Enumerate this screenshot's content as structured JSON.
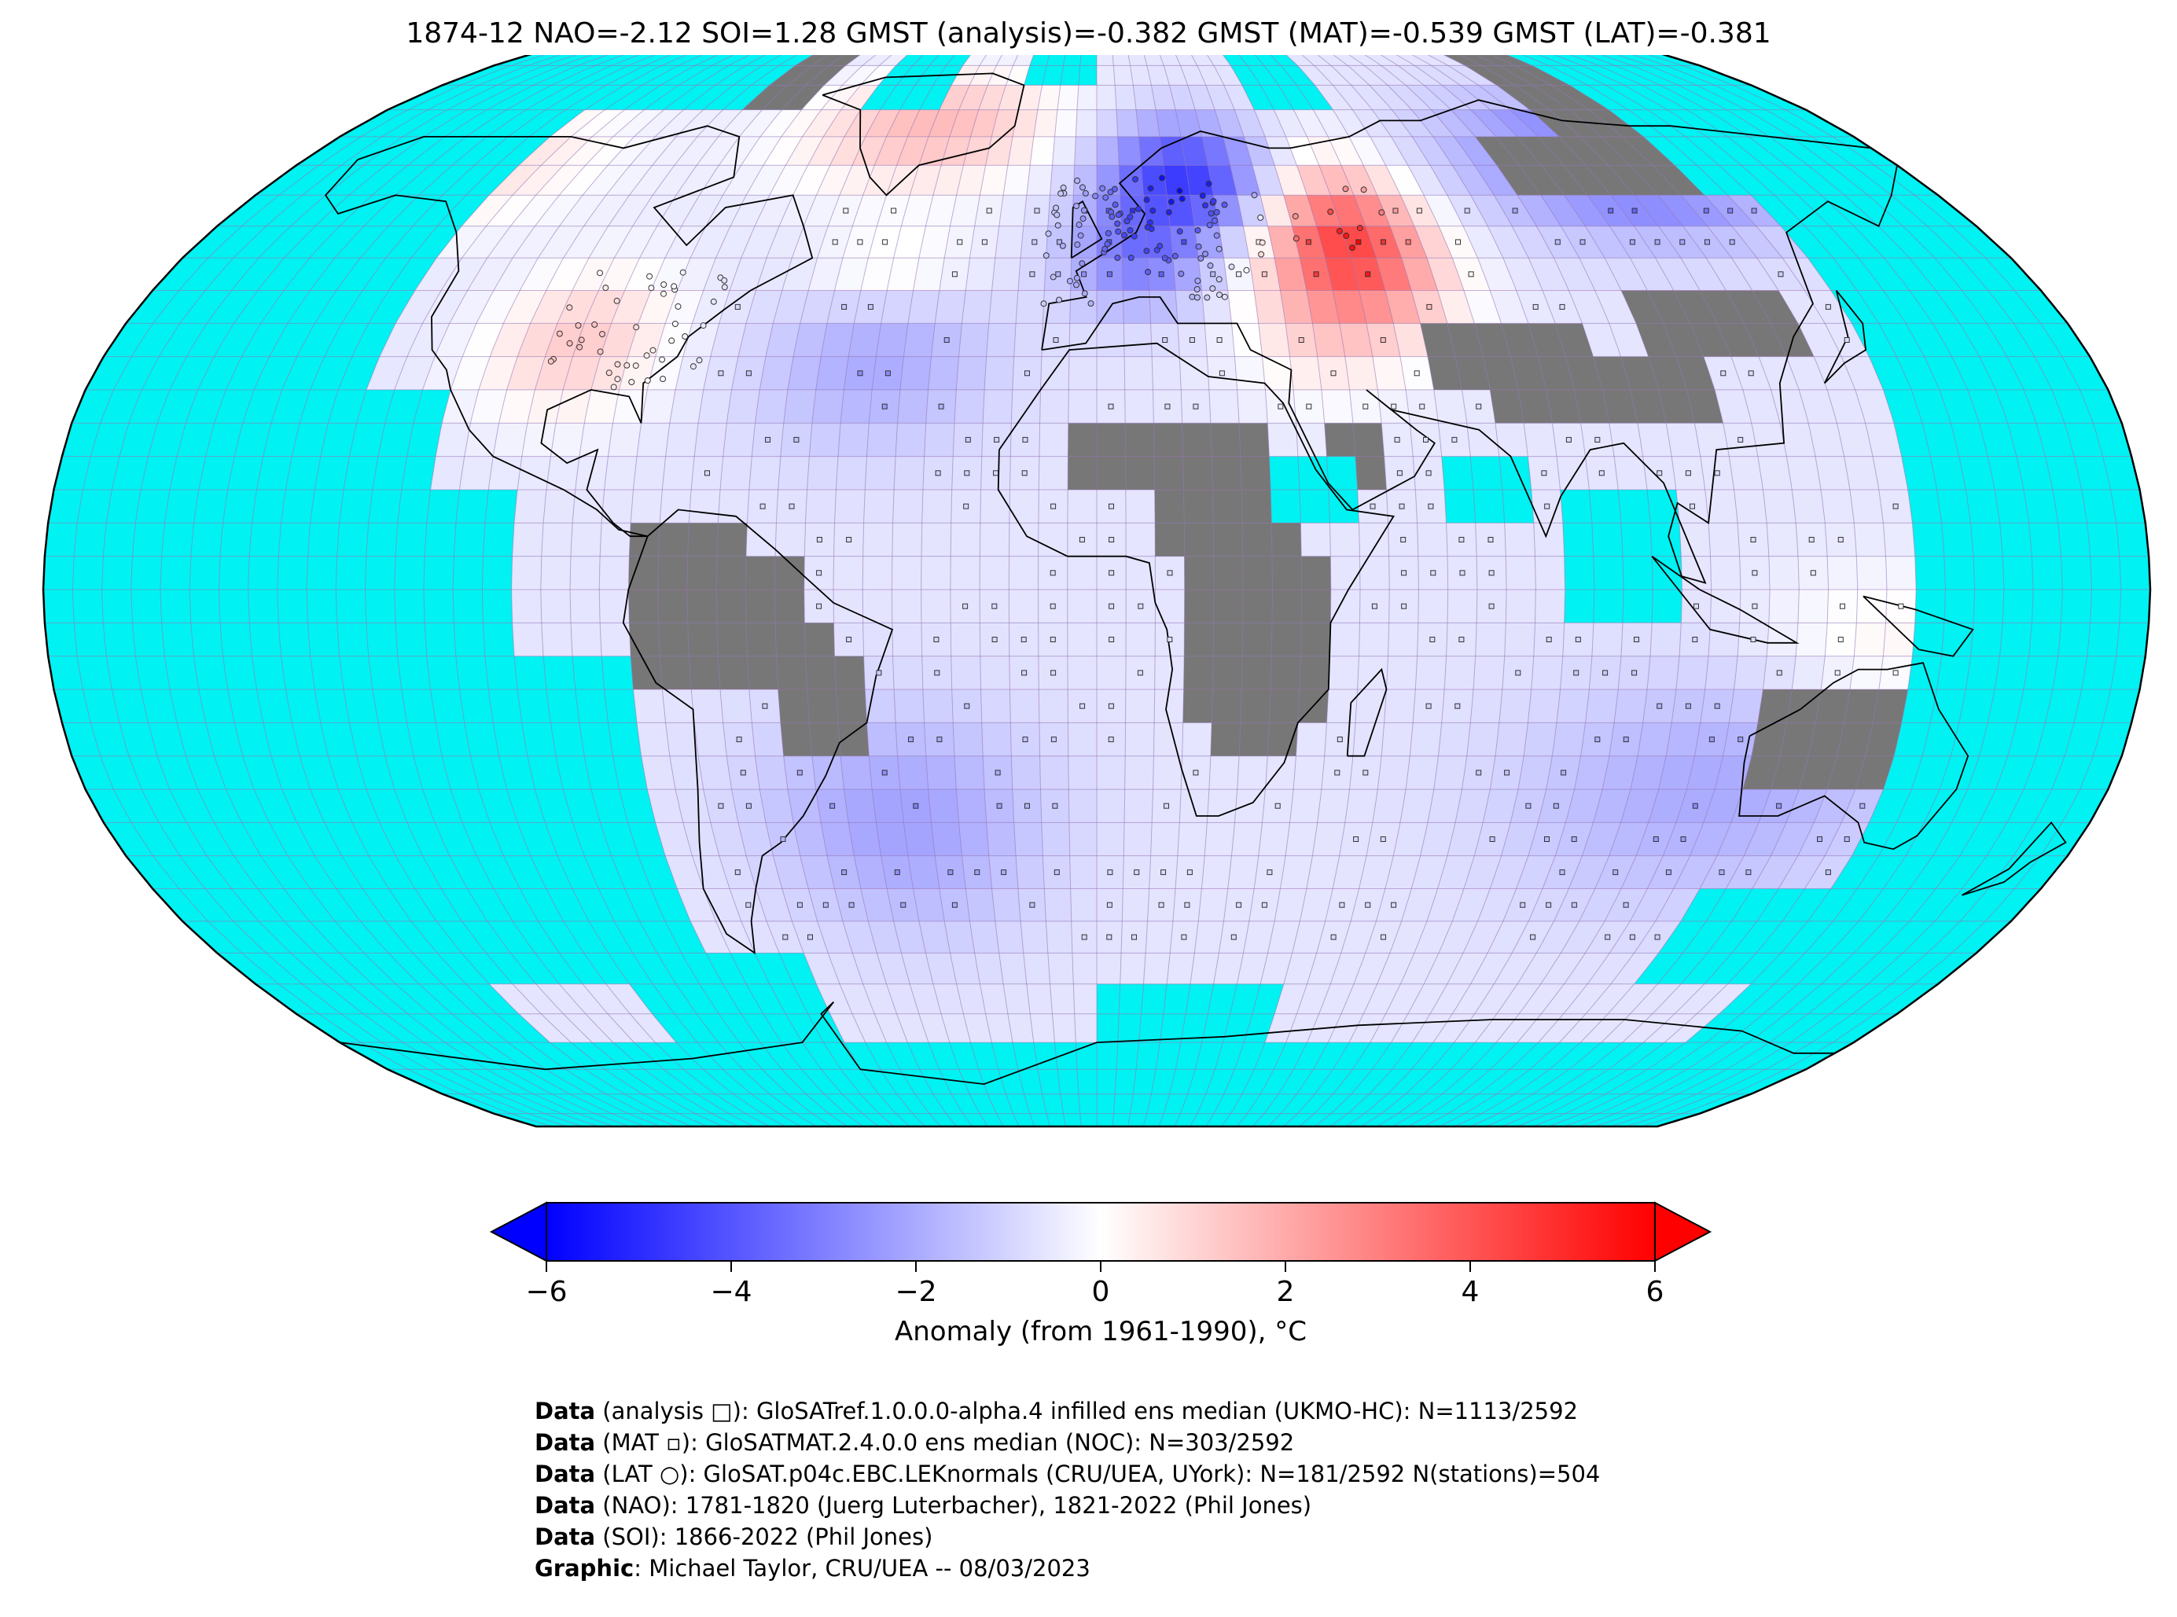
{
  "title": "1874-12 NAO=-2.12 SOI=1.28 GMST (analysis)=-0.382 GMST (MAT)=-0.539 GMST (LAT)=-0.381",
  "colorbar": {
    "ticks": [
      "−6",
      "−4",
      "−2",
      "0",
      "2",
      "4",
      "6"
    ],
    "tick_values": [
      -6,
      -4,
      -2,
      0,
      2,
      4,
      6
    ],
    "label": "Anomaly (from 1961-1990), °C",
    "colors": {
      "min": "#0000ff",
      "mid": "#ffffff",
      "max": "#ff0000"
    },
    "extend": "both"
  },
  "map": {
    "projection": "robinson",
    "ocean_color": "#00f2f2",
    "land_nodata_color": "#777777",
    "grid_color": "#a070b0"
  },
  "credits": [
    {
      "key": "Data",
      "text": " (analysis □): GloSATref.1.0.0.0-alpha.4 infilled ens median (UKMO-HC): N=1113/2592"
    },
    {
      "key": "Data",
      "text": " (MAT ▫): GloSATMAT.2.4.0.0 ens median (NOC): N=303/2592"
    },
    {
      "key": "Data",
      "text": " (LAT ○): GloSAT.p04c.EBC.LEKnormals (CRU/UEA, UYork): N=181/2592 N(stations)=504"
    },
    {
      "key": "Data",
      "text": " (NAO): 1781-1820 (Juerg Luterbacher), 1821-2022 (Phil Jones)"
    },
    {
      "key": "Data",
      "text": " (SOI): 1866-2022 (Phil Jones)"
    },
    {
      "key": "Graphic",
      "text": ": Michael Taylor, CRU/UEA -- 08/03/2023"
    }
  ]
}
